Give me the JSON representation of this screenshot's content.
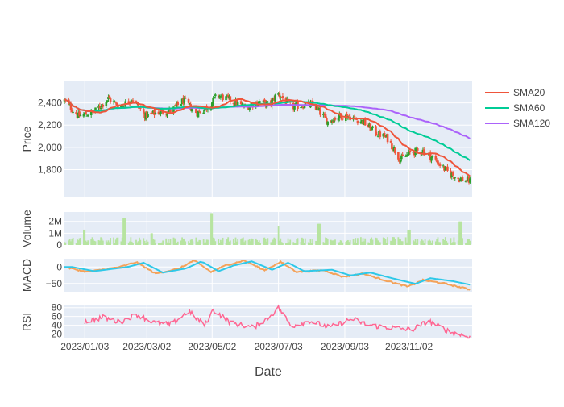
{
  "chart_data": {
    "type": "candlestick",
    "xlabel": "Date",
    "x_ticks": [
      "2023/01/03",
      "2023/03/02",
      "2023/05/02",
      "2023/07/03",
      "2023/09/03",
      "2023/11/02"
    ],
    "x_range": [
      "2022-12-15",
      "2023-12-31"
    ],
    "colors": {
      "plot_bg": "#E5ECF6",
      "increasing": "#2CA02C",
      "decreasing": "#EF553B",
      "sma20": "#EF553B",
      "sma60": "#00CC96",
      "sma120": "#AB63FA",
      "volume": "#B7E4A0",
      "macd": "#F4A259",
      "signal": "#2EC8E8",
      "rsi": "#FF6692"
    },
    "legend": {
      "position": "top-right",
      "entries": [
        "SMA20",
        "SMA60",
        "SMA120"
      ]
    },
    "panels": {
      "price": {
        "ylabel": "Price",
        "ylim": [
          1550,
          2600
        ],
        "ticks": [
          1800,
          2000,
          2200,
          2400
        ],
        "tick_labels": [
          "1,800",
          "2,000",
          "2,200",
          "2,400"
        ],
        "close_anchors": [
          {
            "date": "2022-12-15",
            "value": 2420
          },
          {
            "date": "2022-12-28",
            "value": 2280
          },
          {
            "date": "2023-01-12",
            "value": 2320
          },
          {
            "date": "2023-01-25",
            "value": 2440
          },
          {
            "date": "2023-02-05",
            "value": 2360
          },
          {
            "date": "2023-02-16",
            "value": 2440
          },
          {
            "date": "2023-03-01",
            "value": 2280
          },
          {
            "date": "2023-03-14",
            "value": 2320
          },
          {
            "date": "2023-03-25",
            "value": 2330
          },
          {
            "date": "2023-04-05",
            "value": 2420
          },
          {
            "date": "2023-04-18",
            "value": 2310
          },
          {
            "date": "2023-04-28",
            "value": 2360
          },
          {
            "date": "2023-05-07",
            "value": 2470
          },
          {
            "date": "2023-05-20",
            "value": 2420
          },
          {
            "date": "2023-06-01",
            "value": 2360
          },
          {
            "date": "2023-06-15",
            "value": 2410
          },
          {
            "date": "2023-06-25",
            "value": 2380
          },
          {
            "date": "2023-07-02",
            "value": 2490
          },
          {
            "date": "2023-07-15",
            "value": 2360
          },
          {
            "date": "2023-07-25",
            "value": 2380
          },
          {
            "date": "2023-08-05",
            "value": 2380
          },
          {
            "date": "2023-08-18",
            "value": 2230
          },
          {
            "date": "2023-08-28",
            "value": 2280
          },
          {
            "date": "2023-09-07",
            "value": 2280
          },
          {
            "date": "2023-09-20",
            "value": 2230
          },
          {
            "date": "2023-10-01",
            "value": 2140
          },
          {
            "date": "2023-10-13",
            "value": 2080
          },
          {
            "date": "2023-10-25",
            "value": 1890
          },
          {
            "date": "2023-11-05",
            "value": 1960
          },
          {
            "date": "2023-11-15",
            "value": 1970
          },
          {
            "date": "2023-11-25",
            "value": 1900
          },
          {
            "date": "2023-12-08",
            "value": 1780
          },
          {
            "date": "2023-12-18",
            "value": 1720
          },
          {
            "date": "2023-12-31",
            "value": 1690
          }
        ]
      },
      "volume": {
        "ylabel": "Volume",
        "ylim": [
          0,
          2800000
        ],
        "ticks": [
          0,
          1000000,
          2000000
        ],
        "tick_labels": [
          "0",
          "1M",
          "2M"
        ],
        "base": 400000,
        "spikes": [
          {
            "date": "2023-01-02",
            "value": 1300000
          },
          {
            "date": "2023-02-09",
            "value": 2300000
          },
          {
            "date": "2023-03-06",
            "value": 1000000
          },
          {
            "date": "2023-05-01",
            "value": 2700000
          },
          {
            "date": "2023-07-02",
            "value": 1600000
          },
          {
            "date": "2023-08-10",
            "value": 1800000
          },
          {
            "date": "2023-11-02",
            "value": 1300000
          },
          {
            "date": "2023-12-20",
            "value": 2000000
          }
        ]
      },
      "macd": {
        "ylabel": "MACD",
        "ylim": [
          -75,
          25
        ],
        "ticks": [
          -50,
          0
        ],
        "tick_labels": [
          "−50",
          "0"
        ],
        "anchors": [
          {
            "date": "2022-12-15",
            "value": 0
          },
          {
            "date": "2023-01-05",
            "value": -15
          },
          {
            "date": "2023-02-05",
            "value": 0
          },
          {
            "date": "2023-02-20",
            "value": 15
          },
          {
            "date": "2023-03-10",
            "value": -20
          },
          {
            "date": "2023-04-01",
            "value": -5
          },
          {
            "date": "2023-04-15",
            "value": 20
          },
          {
            "date": "2023-05-01",
            "value": -15
          },
          {
            "date": "2023-05-15",
            "value": 5
          },
          {
            "date": "2023-06-01",
            "value": 20
          },
          {
            "date": "2023-06-20",
            "value": -10
          },
          {
            "date": "2023-07-05",
            "value": 15
          },
          {
            "date": "2023-07-20",
            "value": -15
          },
          {
            "date": "2023-08-15",
            "value": -10
          },
          {
            "date": "2023-09-01",
            "value": -30
          },
          {
            "date": "2023-09-20",
            "value": -20
          },
          {
            "date": "2023-10-10",
            "value": -40
          },
          {
            "date": "2023-11-01",
            "value": -60
          },
          {
            "date": "2023-11-15",
            "value": -40
          },
          {
            "date": "2023-12-05",
            "value": -50
          },
          {
            "date": "2023-12-31",
            "value": -70
          }
        ]
      },
      "rsi": {
        "ylabel": "RSI",
        "ylim": [
          10,
          85
        ],
        "ticks": [
          20,
          40,
          60,
          80
        ],
        "tick_labels": [
          "20",
          "40",
          "60",
          "80"
        ],
        "anchors": [
          {
            "date": "2023-01-03",
            "value": 48
          },
          {
            "date": "2023-01-20",
            "value": 58
          },
          {
            "date": "2023-02-05",
            "value": 47
          },
          {
            "date": "2023-02-20",
            "value": 65
          },
          {
            "date": "2023-03-10",
            "value": 45
          },
          {
            "date": "2023-03-25",
            "value": 42
          },
          {
            "date": "2023-04-10",
            "value": 72
          },
          {
            "date": "2023-04-25",
            "value": 40
          },
          {
            "date": "2023-05-03",
            "value": 75
          },
          {
            "date": "2023-05-20",
            "value": 45
          },
          {
            "date": "2023-06-10",
            "value": 35
          },
          {
            "date": "2023-06-25",
            "value": 60
          },
          {
            "date": "2023-07-03",
            "value": 80
          },
          {
            "date": "2023-07-15",
            "value": 38
          },
          {
            "date": "2023-08-01",
            "value": 50
          },
          {
            "date": "2023-08-20",
            "value": 35
          },
          {
            "date": "2023-09-10",
            "value": 55
          },
          {
            "date": "2023-09-25",
            "value": 40
          },
          {
            "date": "2023-10-15",
            "value": 35
          },
          {
            "date": "2023-11-05",
            "value": 30
          },
          {
            "date": "2023-11-20",
            "value": 50
          },
          {
            "date": "2023-12-10",
            "value": 25
          },
          {
            "date": "2023-12-31",
            "value": 12
          }
        ]
      }
    }
  }
}
